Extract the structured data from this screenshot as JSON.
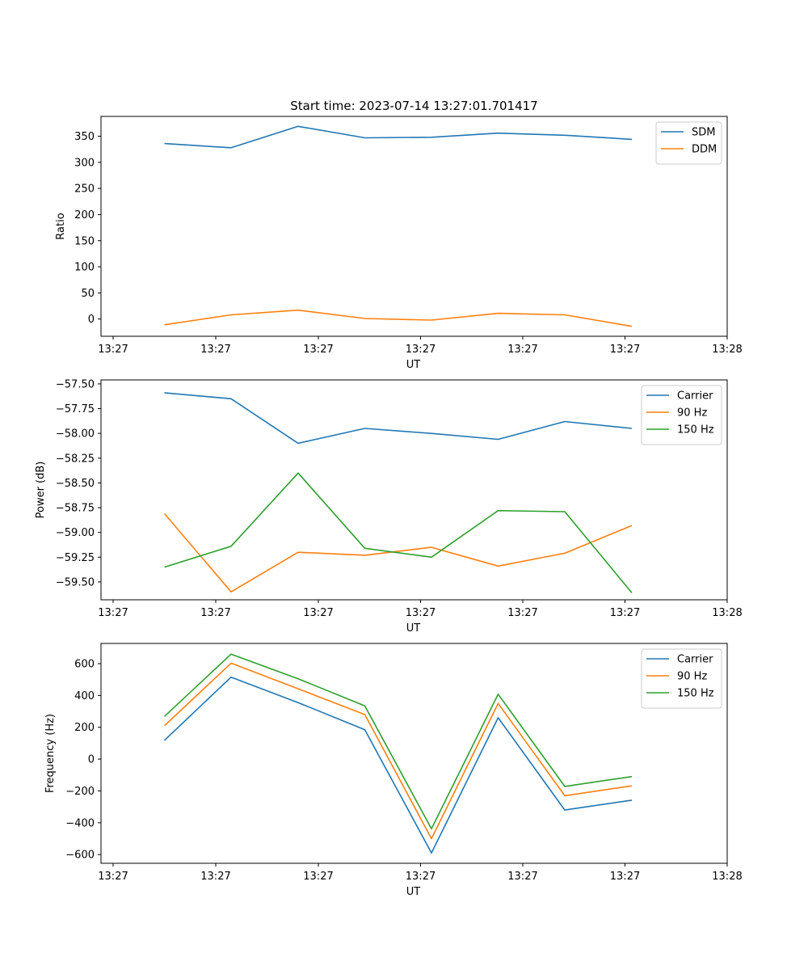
{
  "title": "Start time: 2023-07-14 13:27:01.701417",
  "colors": {
    "blue": "#1f77b4",
    "orange": "#ff7f0e",
    "green": "#2ca02c"
  },
  "chart_data": [
    {
      "type": "line",
      "title": "Start time: 2023-07-14 13:27:01.701417",
      "xlabel": "UT",
      "ylabel": "Ratio",
      "x_ticks": [
        "13:27",
        "13:27",
        "13:27",
        "13:27",
        "13:27",
        "13:27",
        "13:28"
      ],
      "x_index": [
        0,
        1,
        2,
        3,
        4,
        5,
        6,
        7
      ],
      "ylim": [
        -33,
        388
      ],
      "yticks": [
        0,
        50,
        100,
        150,
        200,
        250,
        300,
        350
      ],
      "ytick_labels": [
        "0",
        "50",
        "100",
        "150",
        "200",
        "250",
        "300",
        "350"
      ],
      "legend": "top-right",
      "grid": false,
      "series": [
        {
          "name": "SDM",
          "color": "#1f77b4",
          "values": [
            336,
            328,
            369,
            347,
            348,
            356,
            352,
            344
          ]
        },
        {
          "name": "DDM",
          "color": "#ff7f0e",
          "values": [
            -11,
            8,
            17,
            1,
            -2,
            11,
            8,
            -14
          ]
        }
      ]
    },
    {
      "type": "line",
      "xlabel": "UT",
      "ylabel": "Power (dB)",
      "x_ticks": [
        "13:27",
        "13:27",
        "13:27",
        "13:27",
        "13:27",
        "13:27",
        "13:28"
      ],
      "x_index": [
        0,
        1,
        2,
        3,
        4,
        5,
        6,
        7
      ],
      "ylim": [
        -59.68,
        -57.46
      ],
      "yticks": [
        -59.5,
        -59.25,
        -59.0,
        -58.75,
        -58.5,
        -58.25,
        -58.0,
        -57.75,
        -57.5
      ],
      "ytick_labels": [
        "−59.50",
        "−59.25",
        "−59.00",
        "−58.75",
        "−58.50",
        "−58.25",
        "−58.00",
        "−57.75",
        "−57.50"
      ],
      "legend": "top-right",
      "grid": false,
      "series": [
        {
          "name": "Carrier",
          "color": "#1f77b4",
          "values": [
            -57.59,
            -57.65,
            -58.1,
            -57.95,
            -58.0,
            -58.06,
            -57.88,
            -57.95
          ]
        },
        {
          "name": "90 Hz",
          "color": "#ff7f0e",
          "values": [
            -58.81,
            -59.6,
            -59.2,
            -59.23,
            -59.15,
            -59.34,
            -59.21,
            -58.93
          ]
        },
        {
          "name": "150 Hz",
          "color": "#2ca02c",
          "values": [
            -59.35,
            -59.14,
            -58.4,
            -59.16,
            -59.25,
            -58.78,
            -58.79,
            -59.61
          ]
        }
      ]
    },
    {
      "type": "line",
      "xlabel": "UT",
      "ylabel": "Frequency (Hz)",
      "x_ticks": [
        "13:27",
        "13:27",
        "13:27",
        "13:27",
        "13:27",
        "13:27",
        "13:28"
      ],
      "x_index": [
        0,
        1,
        2,
        3,
        4,
        5,
        6,
        7
      ],
      "ylim": [
        -655,
        727
      ],
      "yticks": [
        -600,
        -400,
        -200,
        0,
        200,
        400,
        600
      ],
      "ytick_labels": [
        "−600",
        "−400",
        "−200",
        "0",
        "200",
        "400",
        "600"
      ],
      "legend": "top-right",
      "grid": false,
      "series": [
        {
          "name": "Carrier",
          "color": "#1f77b4",
          "values": [
            118,
            515,
            355,
            185,
            -590,
            260,
            -320,
            -258
          ]
        },
        {
          "name": "90 Hz",
          "color": "#ff7f0e",
          "values": [
            210,
            603,
            442,
            280,
            -500,
            350,
            -230,
            -168
          ]
        },
        {
          "name": "150 Hz",
          "color": "#2ca02c",
          "values": [
            268,
            660,
            505,
            335,
            -438,
            408,
            -172,
            -110
          ]
        }
      ]
    }
  ]
}
